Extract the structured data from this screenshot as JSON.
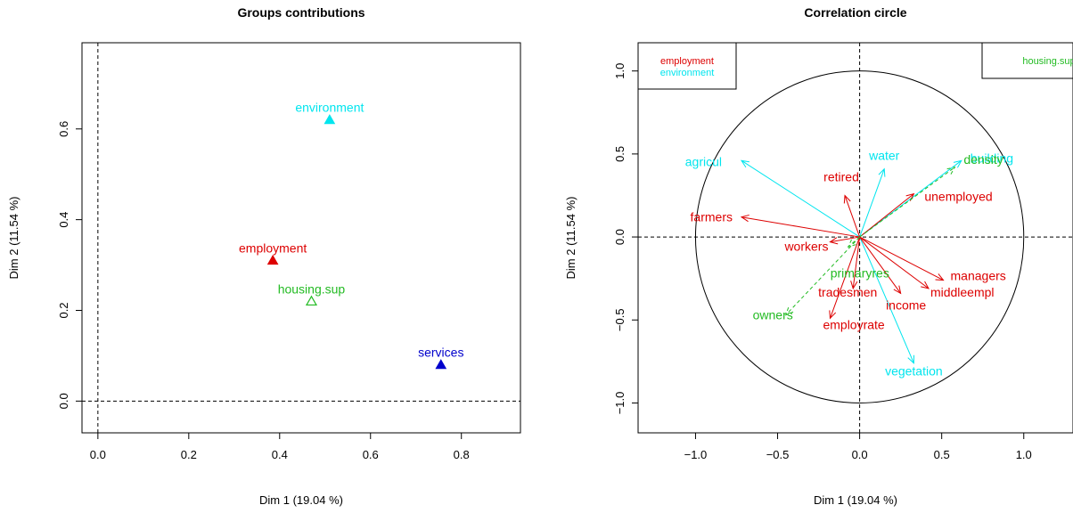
{
  "chart_data": [
    {
      "type": "scatter",
      "title": "Groups contributions",
      "xlabel": "Dim 1 (19.04 %)",
      "ylabel": "Dim 2 (11.54 %)",
      "xlim": [
        -0.035,
        0.93
      ],
      "ylim": [
        -0.07,
        0.79
      ],
      "xticks": [
        0.0,
        0.2,
        0.4,
        0.6,
        0.8
      ],
      "yticks": [
        0.0,
        0.2,
        0.4,
        0.6
      ],
      "xtick_labels": [
        "0.0",
        "0.2",
        "0.4",
        "0.6",
        "0.8"
      ],
      "ytick_labels": [
        "0.0",
        "0.2",
        "0.4",
        "0.6"
      ],
      "reference_lines": {
        "x": 0,
        "y": 0
      },
      "points": [
        {
          "label": "environment",
          "x": 0.51,
          "y": 0.62,
          "color": "#00e5ee",
          "marker": "filled-triangle"
        },
        {
          "label": "employment",
          "x": 0.385,
          "y": 0.31,
          "color": "#dd0000",
          "marker": "filled-triangle"
        },
        {
          "label": "housing.sup",
          "x": 0.47,
          "y": 0.22,
          "color": "#22bb22",
          "marker": "open-triangle"
        },
        {
          "label": "services",
          "x": 0.755,
          "y": 0.08,
          "color": "#0000cc",
          "marker": "filled-triangle"
        }
      ]
    },
    {
      "type": "vector",
      "title": "Correlation circle",
      "xlabel": "Dim 1 (19.04 %)",
      "ylabel": "Dim 2 (11.54 %)",
      "xlim": [
        -1.35,
        1.3
      ],
      "ylim": [
        -1.18,
        1.17
      ],
      "xticks": [
        -1.0,
        -0.5,
        0.0,
        0.5,
        1.0
      ],
      "yticks": [
        -1.0,
        -0.5,
        0.0,
        0.5,
        1.0
      ],
      "xtick_labels": [
        "−1.0",
        "−0.5",
        "0.0",
        "0.5",
        "1.0"
      ],
      "ytick_labels": [
        "−1.0",
        "−0.5",
        "0.0",
        "0.5",
        "1.0"
      ],
      "reference_lines": {
        "x": 0,
        "y": 0
      },
      "unit_circle": true,
      "legends": [
        {
          "position": "top-left",
          "entries": [
            {
              "name": "employment",
              "color": "#dd0000"
            },
            {
              "name": "environment",
              "color": "#00e5ee"
            }
          ]
        },
        {
          "position": "top-right",
          "entries": [
            {
              "name": "housing.sup",
              "color": "#22bb22"
            }
          ]
        }
      ],
      "vectors": [
        {
          "label": "agricul",
          "x": -0.72,
          "y": 0.46,
          "color": "#00e5ee",
          "dashed": false
        },
        {
          "label": "water",
          "x": 0.15,
          "y": 0.41,
          "color": "#00e5ee",
          "dashed": false
        },
        {
          "label": "building",
          "x": 0.62,
          "y": 0.46,
          "color": "#00e5ee",
          "dashed": false
        },
        {
          "label": "vegetation",
          "x": 0.33,
          "y": -0.76,
          "color": "#00e5ee",
          "dashed": false
        },
        {
          "label": "retired",
          "x": -0.09,
          "y": 0.25,
          "color": "#dd0000",
          "dashed": false
        },
        {
          "label": "unemployed",
          "x": 0.33,
          "y": 0.26,
          "color": "#dd0000",
          "dashed": false
        },
        {
          "label": "farmers",
          "x": -0.72,
          "y": 0.12,
          "color": "#dd0000",
          "dashed": false
        },
        {
          "label": "workers",
          "x": -0.18,
          "y": -0.03,
          "color": "#dd0000",
          "dashed": false
        },
        {
          "label": "managers",
          "x": 0.51,
          "y": -0.26,
          "color": "#dd0000",
          "dashed": false
        },
        {
          "label": "middleempl",
          "x": 0.42,
          "y": -0.31,
          "color": "#dd0000",
          "dashed": false
        },
        {
          "label": "tradesmen",
          "x": -0.04,
          "y": -0.31,
          "color": "#dd0000",
          "dashed": false
        },
        {
          "label": "income",
          "x": 0.25,
          "y": -0.34,
          "color": "#dd0000",
          "dashed": false
        },
        {
          "label": "employrate",
          "x": -0.18,
          "y": -0.49,
          "color": "#dd0000",
          "dashed": false
        },
        {
          "label": "density",
          "x": 0.58,
          "y": 0.42,
          "color": "#22bb22",
          "dashed": true
        },
        {
          "label": "primaryres",
          "x": -0.07,
          "y": -0.06,
          "color": "#22bb22",
          "dashed": true
        },
        {
          "label": "owners",
          "x": -0.45,
          "y": -0.47,
          "color": "#22bb22",
          "dashed": true
        }
      ]
    }
  ]
}
